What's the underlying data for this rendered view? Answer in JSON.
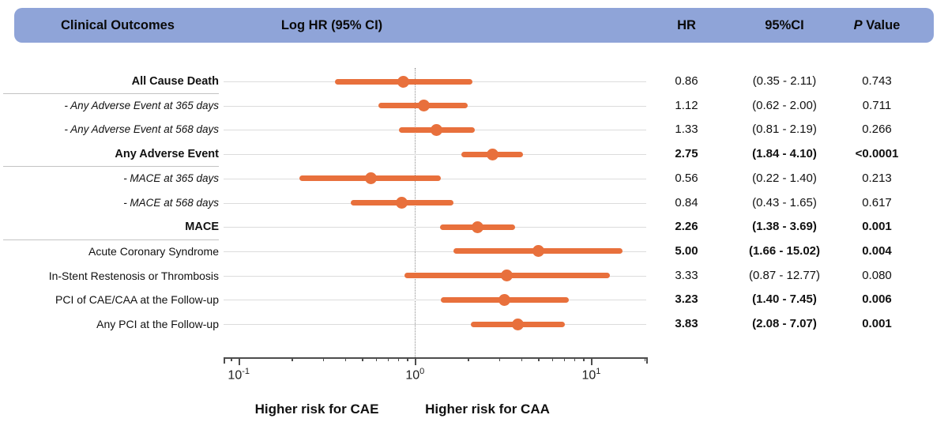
{
  "header": {
    "clinical_outcomes": "Clinical Outcomes",
    "log_hr": "Log HR (95% CI)",
    "hr": "HR",
    "ci": "95%CI",
    "p_italic": "P",
    "p_rest": " Value"
  },
  "colors": {
    "header_bg": "#8FA4D8",
    "marker_orange": "#E8703C",
    "guide_line": "#DCDCDC",
    "separator": "#C3C3C3",
    "axis": "#4D4D4D",
    "reference_line": "#8C8C8C"
  },
  "chart_data": {
    "type": "scatter",
    "subtype": "forest-plot",
    "x_axis": {
      "scale": "log10",
      "min": 0.082,
      "max": 20.5,
      "reference_line": 1,
      "major_ticks": [
        0.1,
        1,
        10
      ],
      "minor_ticks": [
        0.09,
        0.2,
        0.3,
        0.4,
        0.5,
        0.6,
        0.7,
        0.8,
        0.9,
        2,
        3,
        4,
        5,
        6,
        7,
        8,
        9,
        20
      ],
      "tick_labels": [
        {
          "value": 0.1,
          "base": "10",
          "exp": "-1"
        },
        {
          "value": 1,
          "base": "10",
          "exp": "0"
        },
        {
          "value": 10,
          "base": "10",
          "exp": "1"
        }
      ]
    },
    "footer_labels": [
      "Higher risk for CAE",
      "Higher risk for CAA"
    ],
    "rows": [
      {
        "label": "All Cause Death",
        "style": "group",
        "hr": 0.86,
        "lo": 0.35,
        "hi": 2.11,
        "hr_text": "0.86",
        "ci_text": "(0.35 - 2.11)",
        "p_text": "0.743",
        "bold_values": false,
        "separator_after": true
      },
      {
        "label": "- Any Adverse Event at 365 days",
        "style": "sub",
        "hr": 1.12,
        "lo": 0.62,
        "hi": 2.0,
        "hr_text": "1.12",
        "ci_text": "(0.62 - 2.00)",
        "p_text": "0.711",
        "bold_values": false,
        "separator_after": false
      },
      {
        "label": "- Any Adverse Event at 568 days",
        "style": "sub",
        "hr": 1.33,
        "lo": 0.81,
        "hi": 2.19,
        "hr_text": "1.33",
        "ci_text": "(0.81 - 2.19)",
        "p_text": "0.266",
        "bold_values": false,
        "separator_after": false
      },
      {
        "label": "Any Adverse Event",
        "style": "group",
        "hr": 2.75,
        "lo": 1.84,
        "hi": 4.1,
        "hr_text": "2.75",
        "ci_text": "(1.84 - 4.10)",
        "p_text": "<0.0001",
        "bold_values": true,
        "separator_after": true
      },
      {
        "label": "- MACE at 365 days",
        "style": "sub",
        "hr": 0.56,
        "lo": 0.22,
        "hi": 1.4,
        "hr_text": "0.56",
        "ci_text": "(0.22 - 1.40)",
        "p_text": "0.213",
        "bold_values": false,
        "separator_after": false
      },
      {
        "label": "- MACE at 568 days",
        "style": "sub",
        "hr": 0.84,
        "lo": 0.43,
        "hi": 1.65,
        "hr_text": "0.84",
        "ci_text": "(0.43 - 1.65)",
        "p_text": "0.617",
        "bold_values": false,
        "separator_after": false
      },
      {
        "label": "MACE",
        "style": "group",
        "hr": 2.26,
        "lo": 1.38,
        "hi": 3.69,
        "hr_text": "2.26",
        "ci_text": "(1.38 - 3.69)",
        "p_text": "0.001",
        "bold_values": true,
        "separator_after": true
      },
      {
        "label": "Acute Coronary Syndrome",
        "style": "plain",
        "hr": 5.0,
        "lo": 1.66,
        "hi": 15.02,
        "hr_text": "5.00",
        "ci_text": "(1.66 - 15.02)",
        "p_text": "0.004",
        "bold_values": true,
        "separator_after": false
      },
      {
        "label": "In-Stent Restenosis or Thrombosis",
        "style": "plain",
        "hr": 3.33,
        "lo": 0.87,
        "hi": 12.77,
        "hr_text": "3.33",
        "ci_text": "(0.87 - 12.77)",
        "p_text": "0.080",
        "bold_values": false,
        "separator_after": false
      },
      {
        "label": "PCI of CAE/CAA at the Follow-up",
        "style": "plain",
        "hr": 3.23,
        "lo": 1.4,
        "hi": 7.45,
        "hr_text": "3.23",
        "ci_text": "(1.40 - 7.45)",
        "p_text": "0.006",
        "bold_values": true,
        "separator_after": false
      },
      {
        "label": "Any PCI at the Follow-up",
        "style": "plain",
        "hr": 3.83,
        "lo": 2.08,
        "hi": 7.07,
        "hr_text": "3.83",
        "ci_text": "(2.08 - 7.07)",
        "p_text": "0.001",
        "bold_values": true,
        "separator_after": false
      }
    ]
  }
}
